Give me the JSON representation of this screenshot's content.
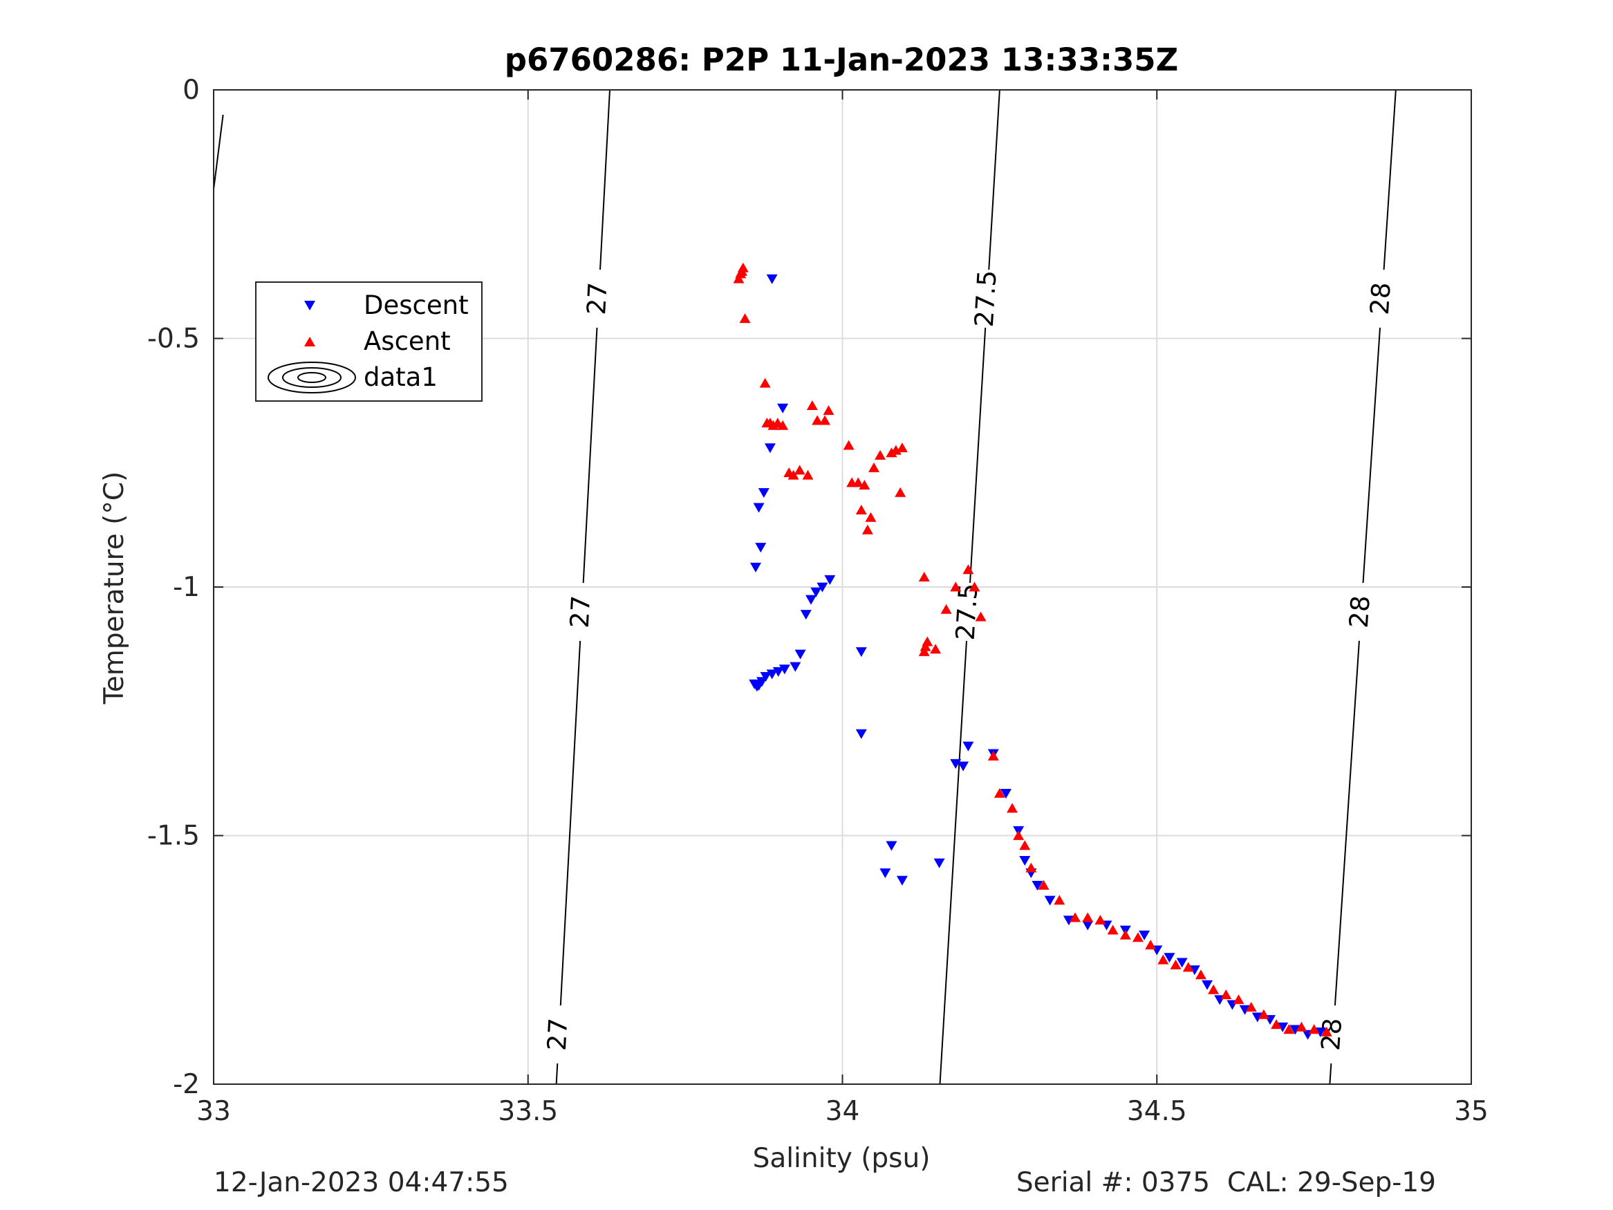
{
  "footer": {
    "left": "12-Jan-2023 04:47:55",
    "right": "Serial #: 0375  CAL: 29-Sep-19"
  },
  "chart_data": {
    "type": "scatter",
    "title": "p6760286: P2P 11-Jan-2023 13:33:35Z",
    "xlabel": "Salinity (psu)",
    "ylabel": "Temperature (°C)",
    "xlim": [
      33,
      35
    ],
    "ylim": [
      -2,
      0
    ],
    "xticks": [
      "33",
      "33.5",
      "34",
      "34.5",
      "35"
    ],
    "yticks": [
      "0",
      "-0.5",
      "-1",
      "-1.5",
      "-2"
    ],
    "grid": true,
    "legend": {
      "placement": "upper-left",
      "entries": [
        "Descent",
        "Ascent",
        "data1"
      ]
    },
    "colors": {
      "descent": "#0000ff",
      "ascent": "#ff0000",
      "contour": "#000000",
      "grid": "#dcdcdc",
      "axis": "#262626"
    },
    "series": [
      {
        "name": "Descent",
        "marker": "triangle-down",
        "color": "#0000ff",
        "points": [
          [
            33.888,
            -0.38
          ],
          [
            33.905,
            -0.64
          ],
          [
            33.885,
            -0.72
          ],
          [
            33.875,
            -0.81
          ],
          [
            33.867,
            -0.84
          ],
          [
            33.87,
            -0.92
          ],
          [
            33.862,
            -0.96
          ],
          [
            33.86,
            -1.195
          ],
          [
            33.864,
            -1.2
          ],
          [
            33.867,
            -1.198
          ],
          [
            33.872,
            -1.19
          ],
          [
            33.878,
            -1.18
          ],
          [
            33.888,
            -1.175
          ],
          [
            33.898,
            -1.17
          ],
          [
            33.908,
            -1.165
          ],
          [
            33.925,
            -1.16
          ],
          [
            33.933,
            -1.135
          ],
          [
            33.942,
            -1.055
          ],
          [
            33.95,
            -1.025
          ],
          [
            33.958,
            -1.01
          ],
          [
            33.968,
            -1.0
          ],
          [
            33.98,
            -0.985
          ],
          [
            34.03,
            -1.13
          ],
          [
            34.03,
            -1.295
          ],
          [
            34.078,
            -1.52
          ],
          [
            34.068,
            -1.575
          ],
          [
            34.095,
            -1.59
          ],
          [
            34.154,
            -1.555
          ],
          [
            34.18,
            -1.355
          ],
          [
            34.192,
            -1.36
          ],
          [
            34.2,
            -1.32
          ],
          [
            34.24,
            -1.335
          ],
          [
            34.26,
            -1.415
          ],
          [
            34.28,
            -1.49
          ],
          [
            34.29,
            -1.55
          ],
          [
            34.3,
            -1.575
          ],
          [
            34.31,
            -1.6
          ],
          [
            34.33,
            -1.63
          ],
          [
            34.36,
            -1.67
          ],
          [
            34.39,
            -1.68
          ],
          [
            34.42,
            -1.68
          ],
          [
            34.45,
            -1.69
          ],
          [
            34.48,
            -1.7
          ],
          [
            34.5,
            -1.73
          ],
          [
            34.52,
            -1.745
          ],
          [
            34.54,
            -1.755
          ],
          [
            34.56,
            -1.77
          ],
          [
            34.58,
            -1.8
          ],
          [
            34.6,
            -1.83
          ],
          [
            34.62,
            -1.84
          ],
          [
            34.64,
            -1.85
          ],
          [
            34.66,
            -1.865
          ],
          [
            34.68,
            -1.87
          ],
          [
            34.7,
            -1.885
          ],
          [
            34.72,
            -1.89
          ],
          [
            34.74,
            -1.9
          ],
          [
            34.76,
            -1.895
          ]
        ]
      },
      {
        "name": "Ascent",
        "marker": "triangle-up",
        "color": "#ff0000",
        "points": [
          [
            33.835,
            -0.38
          ],
          [
            33.838,
            -0.37
          ],
          [
            33.84,
            -0.365
          ],
          [
            33.842,
            -0.358
          ],
          [
            33.845,
            -0.46
          ],
          [
            33.877,
            -0.59
          ],
          [
            33.88,
            -0.67
          ],
          [
            33.885,
            -0.67
          ],
          [
            33.89,
            -0.675
          ],
          [
            33.897,
            -0.67
          ],
          [
            33.905,
            -0.675
          ],
          [
            33.915,
            -0.77
          ],
          [
            33.922,
            -0.775
          ],
          [
            33.932,
            -0.765
          ],
          [
            33.945,
            -0.775
          ],
          [
            33.952,
            -0.635
          ],
          [
            33.96,
            -0.665
          ],
          [
            33.972,
            -0.665
          ],
          [
            33.978,
            -0.645
          ],
          [
            34.01,
            -0.715
          ],
          [
            34.015,
            -0.79
          ],
          [
            34.025,
            -0.79
          ],
          [
            34.03,
            -0.845
          ],
          [
            34.035,
            -0.795
          ],
          [
            34.04,
            -0.885
          ],
          [
            34.045,
            -0.86
          ],
          [
            34.05,
            -0.76
          ],
          [
            34.06,
            -0.735
          ],
          [
            34.078,
            -0.73
          ],
          [
            34.085,
            -0.725
          ],
          [
            34.095,
            -0.72
          ],
          [
            34.092,
            -0.81
          ],
          [
            34.13,
            -0.98
          ],
          [
            34.13,
            -1.13
          ],
          [
            34.132,
            -1.12
          ],
          [
            34.135,
            -1.11
          ],
          [
            34.148,
            -1.125
          ],
          [
            34.165,
            -1.045
          ],
          [
            34.18,
            -1.0
          ],
          [
            34.2,
            -0.965
          ],
          [
            34.21,
            -1.0
          ],
          [
            34.22,
            -1.06
          ],
          [
            34.24,
            -1.34
          ],
          [
            34.25,
            -1.415
          ],
          [
            34.27,
            -1.445
          ],
          [
            34.28,
            -1.5
          ],
          [
            34.29,
            -1.52
          ],
          [
            34.3,
            -1.565
          ],
          [
            34.32,
            -1.6
          ],
          [
            34.345,
            -1.63
          ],
          [
            34.37,
            -1.665
          ],
          [
            34.39,
            -1.665
          ],
          [
            34.41,
            -1.67
          ],
          [
            34.43,
            -1.69
          ],
          [
            34.45,
            -1.7
          ],
          [
            34.47,
            -1.705
          ],
          [
            34.49,
            -1.72
          ],
          [
            34.51,
            -1.75
          ],
          [
            34.53,
            -1.76
          ],
          [
            34.55,
            -1.765
          ],
          [
            34.57,
            -1.78
          ],
          [
            34.59,
            -1.81
          ],
          [
            34.61,
            -1.82
          ],
          [
            34.63,
            -1.83
          ],
          [
            34.65,
            -1.845
          ],
          [
            34.67,
            -1.86
          ],
          [
            34.69,
            -1.88
          ],
          [
            34.71,
            -1.89
          ],
          [
            34.73,
            -1.885
          ],
          [
            34.75,
            -1.89
          ],
          [
            34.77,
            -1.895
          ]
        ]
      }
    ],
    "contours": [
      {
        "label": "27",
        "points": [
          [
            33.015,
            -0.05
          ],
          [
            33.0,
            -0.2
          ]
        ],
        "labels_at": []
      },
      {
        "label": "27",
        "points": [
          [
            33.63,
            0.0
          ],
          [
            33.545,
            -2.0
          ]
        ],
        "labels_at": [
          -0.42,
          -1.05,
          -1.9
        ]
      },
      {
        "label": "27.5",
        "points": [
          [
            34.25,
            0.0
          ],
          [
            34.155,
            -2.0
          ]
        ],
        "labels_at": [
          -0.42,
          -1.05
        ]
      },
      {
        "label": "28",
        "points": [
          [
            34.88,
            0.0
          ],
          [
            34.775,
            -2.0
          ]
        ],
        "labels_at": [
          -0.42,
          -1.05,
          -1.9
        ]
      }
    ]
  }
}
